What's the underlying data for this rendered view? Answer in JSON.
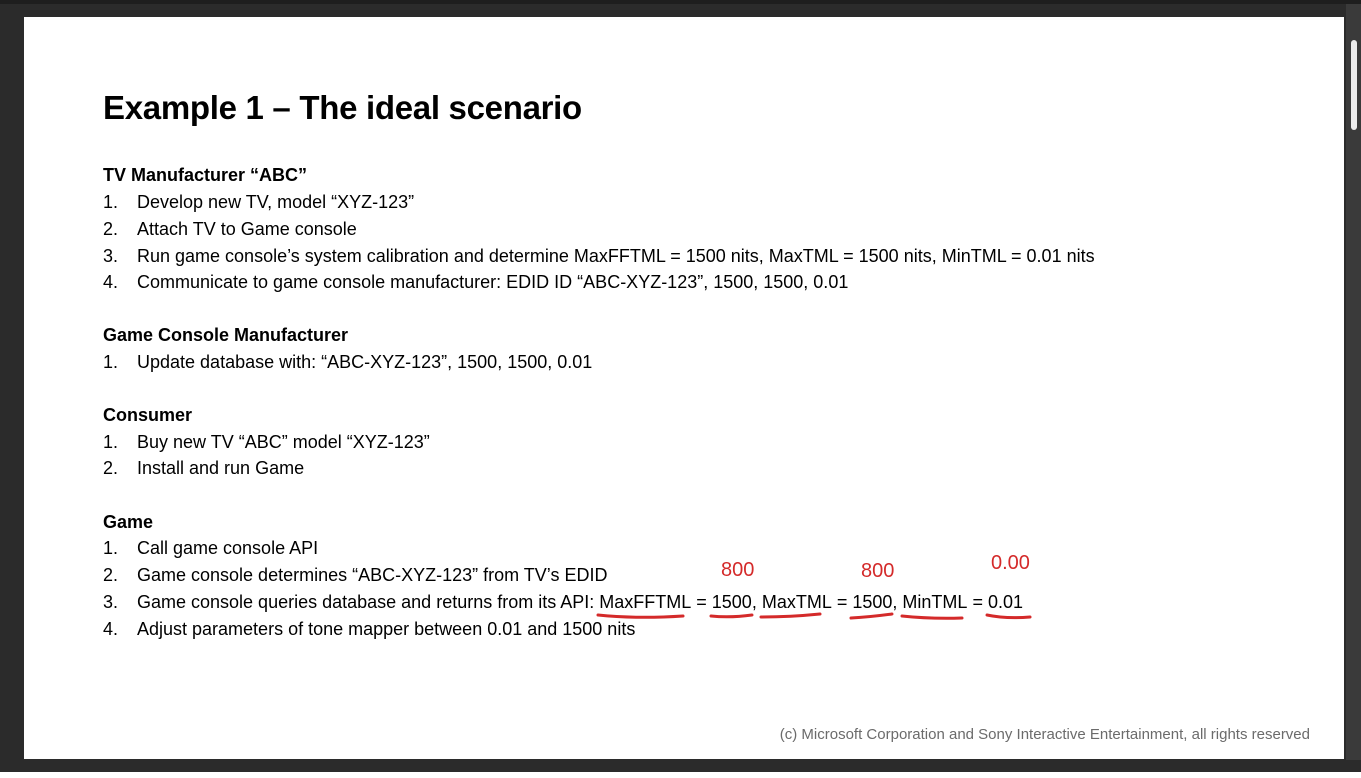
{
  "title": "Example 1 – The ideal scenario",
  "sections": {
    "tv": {
      "heading": "TV Manufacturer “ABC”",
      "items": [
        {
          "num": "1.",
          "text": "Develop new TV, model “XYZ-123”"
        },
        {
          "num": "2.",
          "text": "Attach TV to Game console"
        },
        {
          "num": "3.",
          "text": "Run game console’s system calibration and determine MaxFFTML = 1500 nits, MaxTML = 1500 nits, MinTML = 0.01 nits"
        },
        {
          "num": "4.",
          "text": "Communicate to game console manufacturer: EDID ID “ABC-XYZ-123”, 1500, 1500, 0.01"
        }
      ]
    },
    "console": {
      "heading": "Game Console Manufacturer",
      "items": [
        {
          "num": "1.",
          "text": "Update database with: “ABC-XYZ-123”, 1500, 1500, 0.01"
        }
      ]
    },
    "consumer": {
      "heading": "Consumer",
      "items": [
        {
          "num": "1.",
          "text": "Buy new TV “ABC” model “XYZ-123”"
        },
        {
          "num": "2.",
          "text": "Install and run Game"
        }
      ]
    },
    "game": {
      "heading": "Game",
      "items": [
        {
          "num": "1.",
          "text": "Call game console API"
        },
        {
          "num": "2.",
          "text": "Game console determines “ABC-XYZ-123” from TV’s EDID"
        },
        {
          "num": "3.",
          "prefix": "Game console queries database and returns from its API: ",
          "k1": "MaxFFTML",
          "eq1": " = ",
          "v1": "1500",
          "sep1": ", ",
          "k2": "MaxTML",
          "eq2": " = ",
          "v2": "1500",
          "sep2": ", ",
          "k3": "MinTML",
          "eq3": " = ",
          "v3": "0.01"
        },
        {
          "num": "4.",
          "text": "Adjust parameters of tone mapper between 0.01 and 1500 nits"
        }
      ]
    }
  },
  "annotations": {
    "a1": "800",
    "a2": "800",
    "a3": "0.00",
    "color": "#d42a2a"
  },
  "footer": "(c) Microsoft Corporation and Sony Interactive Entertainment, all rights reserved"
}
